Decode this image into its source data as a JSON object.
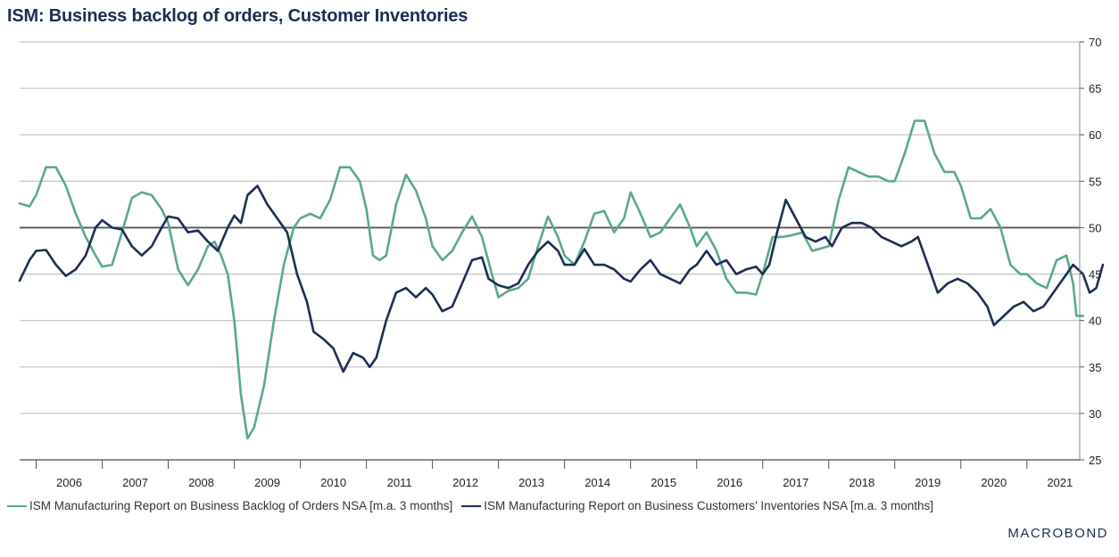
{
  "title": "ISM: Business backlog of orders, Customer Inventories",
  "brand": "MACROBOND",
  "colors": {
    "backlog": "#5aa98a",
    "inventories": "#1c2e52",
    "grid": "#c8c8c8",
    "reference": "#555555"
  },
  "chart_data": {
    "type": "line",
    "title": "ISM: Business backlog of orders, Customer Inventories",
    "xlabel": "",
    "ylabel": "",
    "x_range": [
      2005.75,
      2021.65
    ],
    "ylim": [
      25,
      70
    ],
    "y_axis_position": "right",
    "y_ticks": [
      25,
      30,
      35,
      40,
      45,
      50,
      55,
      60,
      65,
      70
    ],
    "x_tick_labels": [
      "2006",
      "2007",
      "2008",
      "2009",
      "2010",
      "2011",
      "2012",
      "2013",
      "2014",
      "2015",
      "2016",
      "2017",
      "2018",
      "2019",
      "2020",
      "2021"
    ],
    "reference_line": 50,
    "grid": "horizontal",
    "legend_position": "bottom",
    "series": [
      {
        "name": "ISM Manufacturing Report on Business Backlog of Orders NSA [m.a. 3 months]",
        "color": "#5aa98a",
        "points": [
          [
            2005.75,
            52.6
          ],
          [
            2005.9,
            52.3
          ],
          [
            2006.0,
            53.5
          ],
          [
            2006.15,
            56.5
          ],
          [
            2006.3,
            56.5
          ],
          [
            2006.45,
            54.5
          ],
          [
            2006.6,
            51.5
          ],
          [
            2006.75,
            49
          ],
          [
            2006.9,
            47
          ],
          [
            2007.0,
            45.8
          ],
          [
            2007.15,
            46
          ],
          [
            2007.3,
            49.5
          ],
          [
            2007.45,
            53.2
          ],
          [
            2007.6,
            53.8
          ],
          [
            2007.75,
            53.5
          ],
          [
            2007.9,
            52
          ],
          [
            2008.0,
            50.5
          ],
          [
            2008.15,
            45.5
          ],
          [
            2008.3,
            43.8
          ],
          [
            2008.45,
            45.5
          ],
          [
            2008.6,
            48
          ],
          [
            2008.7,
            48.5
          ],
          [
            2008.8,
            47
          ],
          [
            2008.9,
            45
          ],
          [
            2009.0,
            40
          ],
          [
            2009.1,
            32
          ],
          [
            2009.2,
            27.3
          ],
          [
            2009.3,
            28.5
          ],
          [
            2009.45,
            33
          ],
          [
            2009.6,
            40
          ],
          [
            2009.75,
            46
          ],
          [
            2009.9,
            50
          ],
          [
            2010.0,
            51
          ],
          [
            2010.15,
            51.5
          ],
          [
            2010.3,
            51
          ],
          [
            2010.45,
            53
          ],
          [
            2010.6,
            56.5
          ],
          [
            2010.75,
            56.5
          ],
          [
            2010.9,
            55
          ],
          [
            2011.0,
            52
          ],
          [
            2011.1,
            47
          ],
          [
            2011.2,
            46.5
          ],
          [
            2011.3,
            47
          ],
          [
            2011.45,
            52.5
          ],
          [
            2011.6,
            55.7
          ],
          [
            2011.75,
            54
          ],
          [
            2011.9,
            51
          ],
          [
            2012.0,
            48
          ],
          [
            2012.15,
            46.5
          ],
          [
            2012.3,
            47.5
          ],
          [
            2012.45,
            49.5
          ],
          [
            2012.6,
            51.2
          ],
          [
            2012.75,
            49
          ],
          [
            2012.9,
            45
          ],
          [
            2013.0,
            42.5
          ],
          [
            2013.15,
            43.2
          ],
          [
            2013.3,
            43.5
          ],
          [
            2013.45,
            44.5
          ],
          [
            2013.6,
            48
          ],
          [
            2013.75,
            51.2
          ],
          [
            2013.9,
            49
          ],
          [
            2014.0,
            47
          ],
          [
            2014.15,
            46
          ],
          [
            2014.3,
            48.5
          ],
          [
            2014.45,
            51.5
          ],
          [
            2014.6,
            51.8
          ],
          [
            2014.75,
            49.5
          ],
          [
            2014.9,
            51
          ],
          [
            2015.0,
            53.8
          ],
          [
            2015.15,
            51.5
          ],
          [
            2015.3,
            49
          ],
          [
            2015.45,
            49.5
          ],
          [
            2015.6,
            51
          ],
          [
            2015.75,
            52.5
          ],
          [
            2015.9,
            50
          ],
          [
            2016.0,
            48
          ],
          [
            2016.15,
            49.5
          ],
          [
            2016.3,
            47.5
          ],
          [
            2016.45,
            44.5
          ],
          [
            2016.6,
            43
          ],
          [
            2016.75,
            43
          ],
          [
            2016.9,
            42.8
          ],
          [
            2017.0,
            45
          ],
          [
            2017.15,
            49
          ],
          [
            2017.3,
            49
          ],
          [
            2017.45,
            49.2
          ],
          [
            2017.6,
            49.5
          ],
          [
            2017.75,
            47.5
          ],
          [
            2017.9,
            47.8
          ],
          [
            2018.0,
            48
          ],
          [
            2018.15,
            53
          ],
          [
            2018.3,
            56.5
          ],
          [
            2018.45,
            56
          ],
          [
            2018.6,
            55.5
          ],
          [
            2018.75,
            55.5
          ],
          [
            2018.9,
            55
          ],
          [
            2019.0,
            55
          ],
          [
            2019.15,
            58
          ],
          [
            2019.3,
            61.5
          ],
          [
            2019.45,
            61.5
          ],
          [
            2019.6,
            58
          ],
          [
            2019.75,
            56
          ],
          [
            2019.9,
            56
          ],
          [
            2020.0,
            54.5
          ],
          [
            2020.15,
            51
          ],
          [
            2020.3,
            51
          ],
          [
            2020.45,
            52
          ],
          [
            2020.6,
            50
          ],
          [
            2020.75,
            46
          ],
          [
            2020.9,
            45
          ],
          [
            2021.0,
            45
          ],
          [
            2021.15,
            44
          ],
          [
            2021.3,
            43.5
          ],
          [
            2021.45,
            46.5
          ],
          [
            2021.6,
            47
          ],
          [
            2021.7,
            44
          ],
          [
            2021.75,
            40.5
          ],
          [
            2021.85,
            40.5
          ]
        ]
      },
      {
        "name": "ISM Manufacturing Report on Business Customers' Inventories NSA [m.a. 3 months]",
        "color": "#1c2e52",
        "points": [
          [
            2005.75,
            44.3
          ],
          [
            2005.9,
            46.5
          ],
          [
            2006.0,
            47.5
          ],
          [
            2006.15,
            47.6
          ],
          [
            2006.3,
            46
          ],
          [
            2006.45,
            44.8
          ],
          [
            2006.6,
            45.5
          ],
          [
            2006.75,
            47
          ],
          [
            2006.9,
            50
          ],
          [
            2007.0,
            50.8
          ],
          [
            2007.15,
            50
          ],
          [
            2007.3,
            49.8
          ],
          [
            2007.45,
            48
          ],
          [
            2007.6,
            47
          ],
          [
            2007.75,
            48
          ],
          [
            2007.9,
            50
          ],
          [
            2008.0,
            51.2
          ],
          [
            2008.15,
            51
          ],
          [
            2008.3,
            49.5
          ],
          [
            2008.45,
            49.7
          ],
          [
            2008.6,
            48.5
          ],
          [
            2008.75,
            47.5
          ],
          [
            2008.9,
            50
          ],
          [
            2009.0,
            51.3
          ],
          [
            2009.1,
            50.5
          ],
          [
            2009.2,
            53.5
          ],
          [
            2009.35,
            54.5
          ],
          [
            2009.5,
            52.5
          ],
          [
            2009.65,
            51
          ],
          [
            2009.8,
            49.5
          ],
          [
            2009.95,
            45
          ],
          [
            2010.1,
            42
          ],
          [
            2010.2,
            38.8
          ],
          [
            2010.35,
            38
          ],
          [
            2010.5,
            37
          ],
          [
            2010.65,
            34.5
          ],
          [
            2010.8,
            36.5
          ],
          [
            2010.95,
            36
          ],
          [
            2011.05,
            35
          ],
          [
            2011.15,
            36
          ],
          [
            2011.3,
            40
          ],
          [
            2011.45,
            43
          ],
          [
            2011.6,
            43.5
          ],
          [
            2011.75,
            42.5
          ],
          [
            2011.9,
            43.5
          ],
          [
            2012.0,
            42.8
          ],
          [
            2012.15,
            41
          ],
          [
            2012.3,
            41.5
          ],
          [
            2012.45,
            44
          ],
          [
            2012.6,
            46.5
          ],
          [
            2012.75,
            46.8
          ],
          [
            2012.85,
            44.5
          ],
          [
            2013.0,
            43.8
          ],
          [
            2013.15,
            43.5
          ],
          [
            2013.3,
            44
          ],
          [
            2013.45,
            46
          ],
          [
            2013.6,
            47.5
          ],
          [
            2013.75,
            48.5
          ],
          [
            2013.9,
            47.5
          ],
          [
            2014.0,
            46
          ],
          [
            2014.15,
            46
          ],
          [
            2014.3,
            47.7
          ],
          [
            2014.45,
            46
          ],
          [
            2014.6,
            46
          ],
          [
            2014.75,
            45.5
          ],
          [
            2014.9,
            44.5
          ],
          [
            2015.0,
            44.2
          ],
          [
            2015.15,
            45.5
          ],
          [
            2015.3,
            46.5
          ],
          [
            2015.45,
            45
          ],
          [
            2015.6,
            44.5
          ],
          [
            2015.75,
            44
          ],
          [
            2015.9,
            45.5
          ],
          [
            2016.0,
            46
          ],
          [
            2016.15,
            47.5
          ],
          [
            2016.3,
            46
          ],
          [
            2016.45,
            46.5
          ],
          [
            2016.6,
            45
          ],
          [
            2016.75,
            45.5
          ],
          [
            2016.9,
            45.8
          ],
          [
            2017.0,
            45
          ],
          [
            2017.1,
            46
          ],
          [
            2017.2,
            49
          ],
          [
            2017.35,
            53
          ],
          [
            2017.5,
            51
          ],
          [
            2017.65,
            49
          ],
          [
            2017.8,
            48.5
          ],
          [
            2017.95,
            49
          ],
          [
            2018.05,
            48
          ],
          [
            2018.2,
            50
          ],
          [
            2018.35,
            50.5
          ],
          [
            2018.5,
            50.5
          ],
          [
            2018.65,
            50
          ],
          [
            2018.8,
            49
          ],
          [
            2018.95,
            48.5
          ],
          [
            2019.1,
            48
          ],
          [
            2019.25,
            48.5
          ],
          [
            2019.35,
            49
          ],
          [
            2019.5,
            46
          ],
          [
            2019.65,
            43
          ],
          [
            2019.8,
            44
          ],
          [
            2019.95,
            44.5
          ],
          [
            2020.1,
            44
          ],
          [
            2020.25,
            43
          ],
          [
            2020.4,
            41.5
          ],
          [
            2020.5,
            39.5
          ],
          [
            2020.65,
            40.5
          ],
          [
            2020.8,
            41.5
          ],
          [
            2020.95,
            42
          ],
          [
            2021.1,
            41
          ],
          [
            2021.25,
            41.5
          ],
          [
            2021.4,
            43
          ],
          [
            2021.55,
            44.5
          ],
          [
            2021.7,
            46
          ],
          [
            2021.85,
            45
          ],
          [
            2021.95,
            43
          ],
          [
            2022.05,
            43.5
          ],
          [
            2022.15,
            46
          ]
        ]
      }
    ]
  }
}
